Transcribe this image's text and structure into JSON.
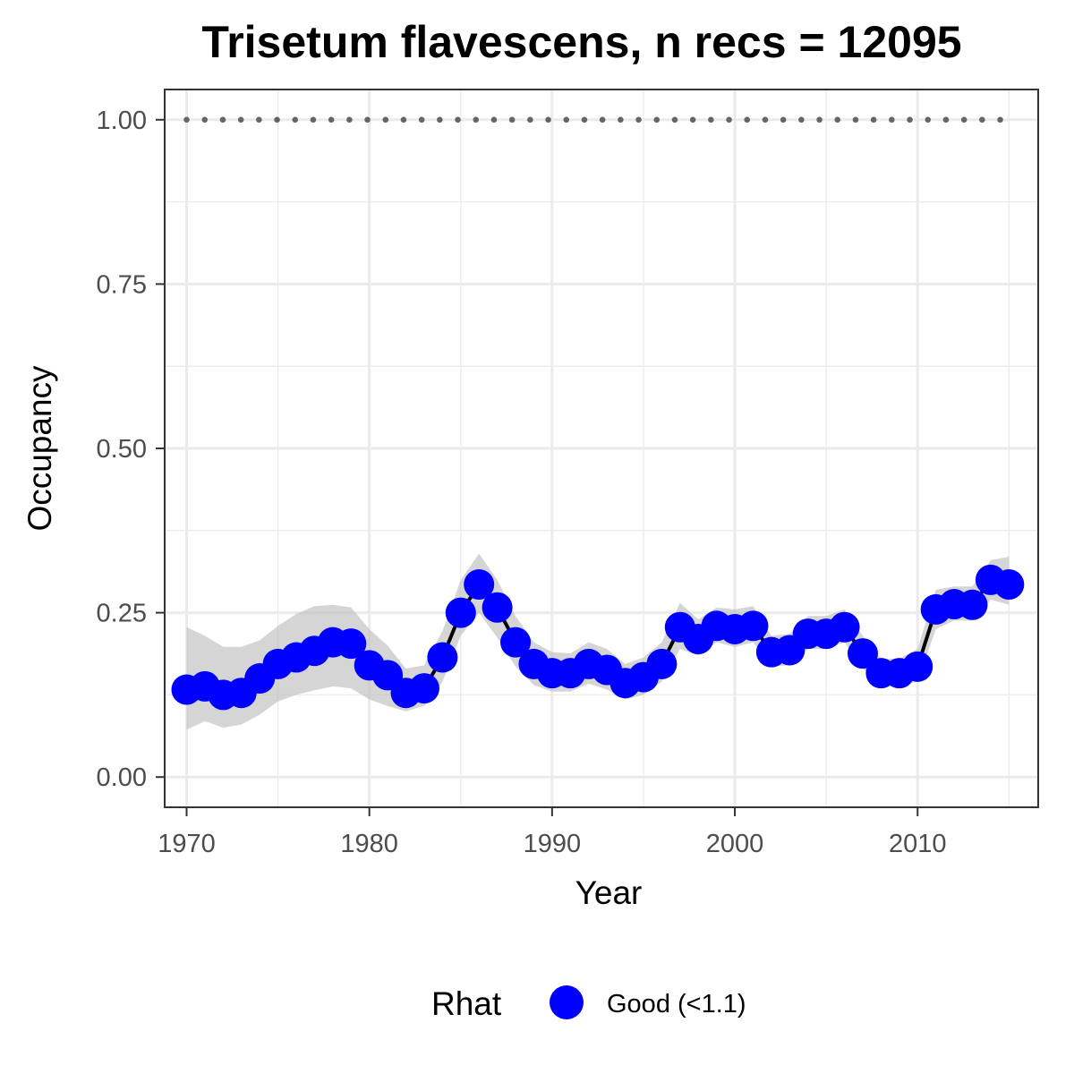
{
  "chart_data": {
    "type": "line",
    "title": "Trisetum flavescens, n recs = 12095",
    "xlabel": "Year",
    "ylabel": "Occupancy",
    "xlim": [
      1968.8,
      2016.6
    ],
    "ylim": [
      -0.046,
      1.046
    ],
    "x_ticks": [
      1970,
      1980,
      1990,
      2000,
      2010
    ],
    "x_tick_labels": [
      "1970",
      "1980",
      "1990",
      "2000",
      "2010"
    ],
    "y_ticks": [
      0,
      0.25,
      0.5,
      0.75,
      1.0
    ],
    "y_tick_labels": [
      "0.00",
      "0.25",
      "0.50",
      "0.75",
      "1.00"
    ],
    "grid": true,
    "series": [
      {
        "name": "Good (<1.1)",
        "x": [
          1970,
          1971,
          1972,
          1973,
          1974,
          1975,
          1976,
          1977,
          1978,
          1979,
          1980,
          1981,
          1982,
          1983,
          1984,
          1985,
          1986,
          1987,
          1988,
          1989,
          1990,
          1991,
          1992,
          1993,
          1994,
          1995,
          1996,
          1997,
          1998,
          1999,
          2000,
          2001,
          2002,
          2003,
          2004,
          2005,
          2006,
          2007,
          2008,
          2009,
          2010,
          2011,
          2012,
          2013,
          2014,
          2015
        ],
        "values": [
          0.133,
          0.138,
          0.125,
          0.128,
          0.15,
          0.172,
          0.182,
          0.192,
          0.205,
          0.203,
          0.17,
          0.155,
          0.128,
          0.135,
          0.182,
          0.25,
          0.293,
          0.258,
          0.205,
          0.172,
          0.158,
          0.158,
          0.172,
          0.163,
          0.143,
          0.152,
          0.172,
          0.228,
          0.21,
          0.23,
          0.225,
          0.23,
          0.19,
          0.193,
          0.218,
          0.218,
          0.228,
          0.188,
          0.158,
          0.158,
          0.168,
          0.255,
          0.263,
          0.262,
          0.3,
          0.293
        ],
        "lower": [
          0.072,
          0.085,
          0.075,
          0.08,
          0.095,
          0.115,
          0.125,
          0.132,
          0.138,
          0.135,
          0.118,
          0.108,
          0.1,
          0.108,
          0.145,
          0.215,
          0.25,
          0.212,
          0.168,
          0.14,
          0.13,
          0.13,
          0.142,
          0.133,
          0.118,
          0.125,
          0.145,
          0.195,
          0.185,
          0.205,
          0.198,
          0.205,
          0.168,
          0.17,
          0.195,
          0.195,
          0.205,
          0.165,
          0.14,
          0.14,
          0.145,
          0.225,
          0.238,
          0.238,
          0.27,
          0.262
        ],
        "upper": [
          0.228,
          0.215,
          0.198,
          0.198,
          0.208,
          0.23,
          0.248,
          0.26,
          0.262,
          0.258,
          0.225,
          0.2,
          0.165,
          0.17,
          0.222,
          0.3,
          0.34,
          0.3,
          0.245,
          0.205,
          0.19,
          0.188,
          0.205,
          0.195,
          0.172,
          0.182,
          0.205,
          0.265,
          0.24,
          0.258,
          0.255,
          0.26,
          0.215,
          0.218,
          0.245,
          0.245,
          0.255,
          0.215,
          0.18,
          0.18,
          0.195,
          0.285,
          0.29,
          0.29,
          0.33,
          0.335
        ],
        "color": "#0000ff"
      }
    ],
    "reference_line": {
      "y": 1.0,
      "style": "dotted",
      "color": "#666666"
    },
    "ribbon_color": "#bebebe",
    "line_color": "#000000",
    "legend": {
      "title": "Rhat",
      "entries": [
        "Good (<1.1)"
      ],
      "position": "bottom"
    }
  }
}
